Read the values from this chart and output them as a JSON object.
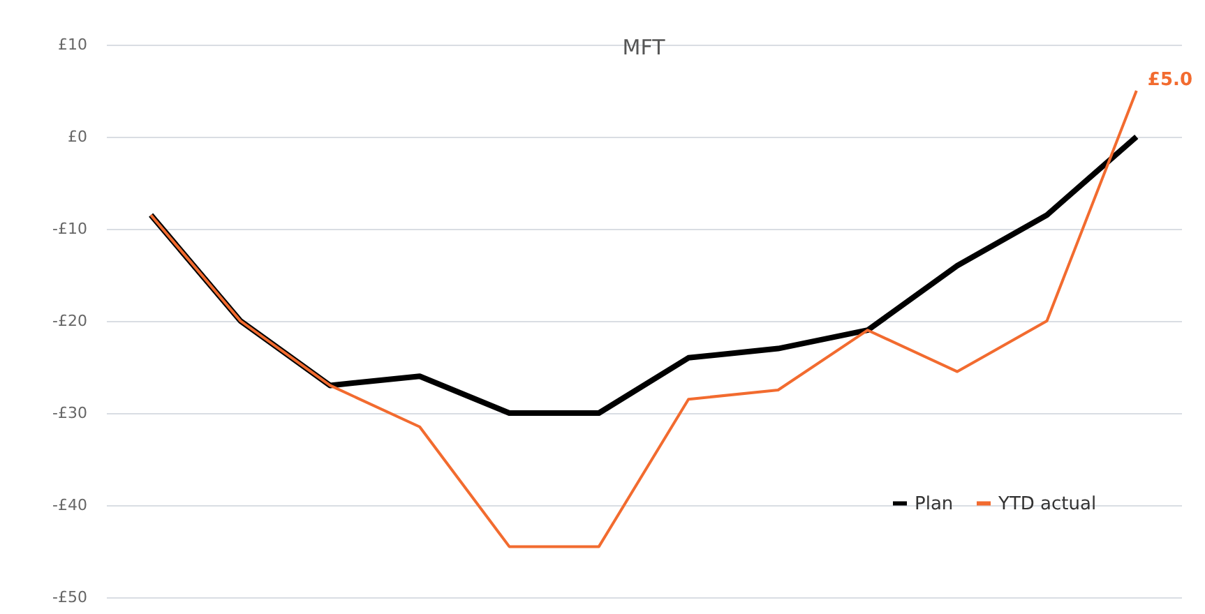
{
  "chart_data": {
    "type": "line",
    "title": "MFT",
    "categories": [
      null,
      null,
      null,
      null,
      null,
      null,
      null,
      null,
      null,
      null,
      null,
      null
    ],
    "series": [
      {
        "name": "Plan",
        "color": "#000000",
        "values": [
          -8.5,
          -20,
          -27,
          -26,
          -30,
          -30,
          -24,
          -23,
          -21,
          -14,
          -8.5,
          0
        ]
      },
      {
        "name": "YTD actual",
        "color": "#f26b2f",
        "values": [
          -8.5,
          -20,
          -27,
          -31.5,
          -44.5,
          -44.5,
          -28.5,
          -27.5,
          -21,
          -25.5,
          -20,
          5.0
        ],
        "value_labels": [
          null,
          null,
          null,
          null,
          null,
          null,
          null,
          null,
          null,
          null,
          null,
          "£5.0"
        ]
      }
    ],
    "ylim": [
      -50,
      10
    ],
    "yticks": [
      {
        "value": 10,
        "label": "£10"
      },
      {
        "value": 0,
        "label": "£0"
      },
      {
        "value": -10,
        "label": "-£10"
      },
      {
        "value": -20,
        "label": "-£20"
      },
      {
        "value": -30,
        "label": "-£30"
      },
      {
        "value": -40,
        "label": "-£40"
      },
      {
        "value": -50,
        "label": "-£50"
      }
    ],
    "grid": "y",
    "legend": "bottom right",
    "tick_labels": "y"
  }
}
